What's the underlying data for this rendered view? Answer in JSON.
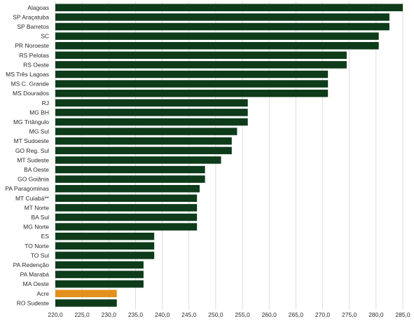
{
  "chart_data": {
    "type": "bar",
    "orientation": "horizontal",
    "title": "",
    "xlabel": "",
    "ylabel": "",
    "xlim": [
      220,
      285
    ],
    "x_ticks": [
      "220,0",
      "225,0",
      "230,0",
      "235,0",
      "240,0",
      "245,0",
      "250,0",
      "255,0",
      "260,0",
      "265,0",
      "270,0",
      "275,0",
      "280,0",
      "285,0"
    ],
    "grid": "vertical",
    "colors": {
      "default": "#0e3b1a",
      "highlight": "#e2911c",
      "grid": "#cfcfcf"
    },
    "highlight_category": "Acre",
    "categories": [
      "Alagoas",
      "SP Araçatuba",
      "SP Barretos",
      "SC",
      "PR Noroeste",
      "RS Pelotas",
      "RS Oeste",
      "MS Três Lagoas",
      "MS C. Grande",
      "MS Dourados",
      "RJ",
      "MG BH",
      "MG Triângulo",
      "MG Sul",
      "MT Sudoeste",
      "GO Reg. Sul",
      "MT Sudeste",
      "BA Oeste",
      "GO Goiânia",
      "PA Paragominas",
      "MT Cuiabá**",
      "MT Norte",
      "BA Sul",
      "MG Norte",
      "ES",
      "TO Norte",
      "TO Sul",
      "PA Redenção",
      "PA Marabá",
      "MA Oeste",
      "Acre",
      "RO Sudeste"
    ],
    "values": [
      285.0,
      282.5,
      282.5,
      280.5,
      280.5,
      274.5,
      274.5,
      271.0,
      271.0,
      271.0,
      256.0,
      256.0,
      256.0,
      254.0,
      253.0,
      253.0,
      251.0,
      248.0,
      248.0,
      247.0,
      246.5,
      246.5,
      246.5,
      246.5,
      238.5,
      238.5,
      238.5,
      236.5,
      236.5,
      236.5,
      231.5,
      231.5
    ]
  }
}
